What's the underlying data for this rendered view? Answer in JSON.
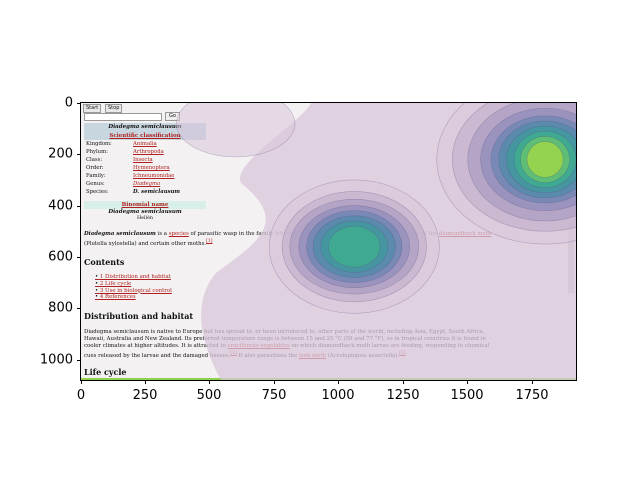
{
  "chart_data": {
    "type": "heatmap",
    "xlim": [
      0,
      1920
    ],
    "ylim": [
      1080,
      0
    ],
    "x_ticks": [
      "0",
      "250",
      "500",
      "750",
      "1000",
      "1250",
      "1500",
      "1750"
    ],
    "y_ticks": [
      "0",
      "200",
      "400",
      "600",
      "800",
      "1000"
    ],
    "hotspots": [
      {
        "x": 1060,
        "y": 560,
        "peak": 0.8
      },
      {
        "x": 1800,
        "y": 220,
        "peak": 1.0
      },
      {
        "x": 600,
        "y": 80,
        "peak": 0.3
      }
    ],
    "colormap": [
      "#d8c5da",
      "#c3b0cc",
      "#aa9cc2",
      "#8e8cba",
      "#6b85b2",
      "#4d8aa8",
      "#3c9b9c",
      "#3fb08a",
      "#6cc86a",
      "#a9dc3f"
    ]
  },
  "browser": {
    "start_label": "Start",
    "stop_label": "Stop",
    "go_label": "Go"
  },
  "infobox": {
    "title": "Diadegma semiclausum",
    "classification": "Scientific classification",
    "rows": [
      {
        "k": "Kingdom:",
        "v": "Animalia"
      },
      {
        "k": "Phylum:",
        "v": "Arthropoda"
      },
      {
        "k": "Class:",
        "v": "Insecta"
      },
      {
        "k": "Order:",
        "v": "Hymenoptera"
      },
      {
        "k": "Family:",
        "v": "Ichneumonidae"
      },
      {
        "k": "Genus:",
        "v": "Diadegma"
      },
      {
        "k": "Species:",
        "v": "D. semiclausum"
      }
    ],
    "binomial_label": "Binomial name",
    "binomial": "Diadegma semiclausum",
    "authority": "Hellén"
  },
  "article": {
    "intro_1": "Diadegma semiclausum",
    "intro_2": " is a ",
    "intro_link1": "species",
    "intro_3": " of parasitic wasp in the family Ichneumonidae. Its larvae are parasites of the larvae of the ",
    "intro_link2": "diamondback moth",
    "intro_4": "(Plutella xylostella) and certain other moths.",
    "intro_ref": "[1]",
    "contents_heading": "Contents",
    "toc": [
      "1 Distribution and habitat",
      "2 Life cycle",
      "3 Use in biological control",
      "4 References"
    ],
    "dist_heading": "Distribution and habitat",
    "dist_line1": "Diadegma semiclausum is native to Europe but has spread to, or been introduced to, other parts of the world, including Asia, Egypt, South Africa,",
    "dist_line2": "Hawaii, Australia and New Zealand. Its preferred temperature range is between 15 and 25 °C (59 and 77 °F), so in tropical countries it is found in",
    "dist_line3a": "cooler climates at higher altitudes. It is attracted to ",
    "dist_link_cruc": "cruciferous vegetables",
    "dist_line3b": " on which diamondback moth larvae are feeding, responding to chemical",
    "dist_line4a": "cues released by the larvae and the damaged tissues.",
    "dist_ref1": "[1]",
    "dist_line4b": " It also parasitises the ",
    "dist_link_leek": "leek moth",
    "dist_line4c": " (Acrolepiopsis assectella).",
    "dist_ref2": "[2]",
    "life_heading": "Life cycle"
  }
}
